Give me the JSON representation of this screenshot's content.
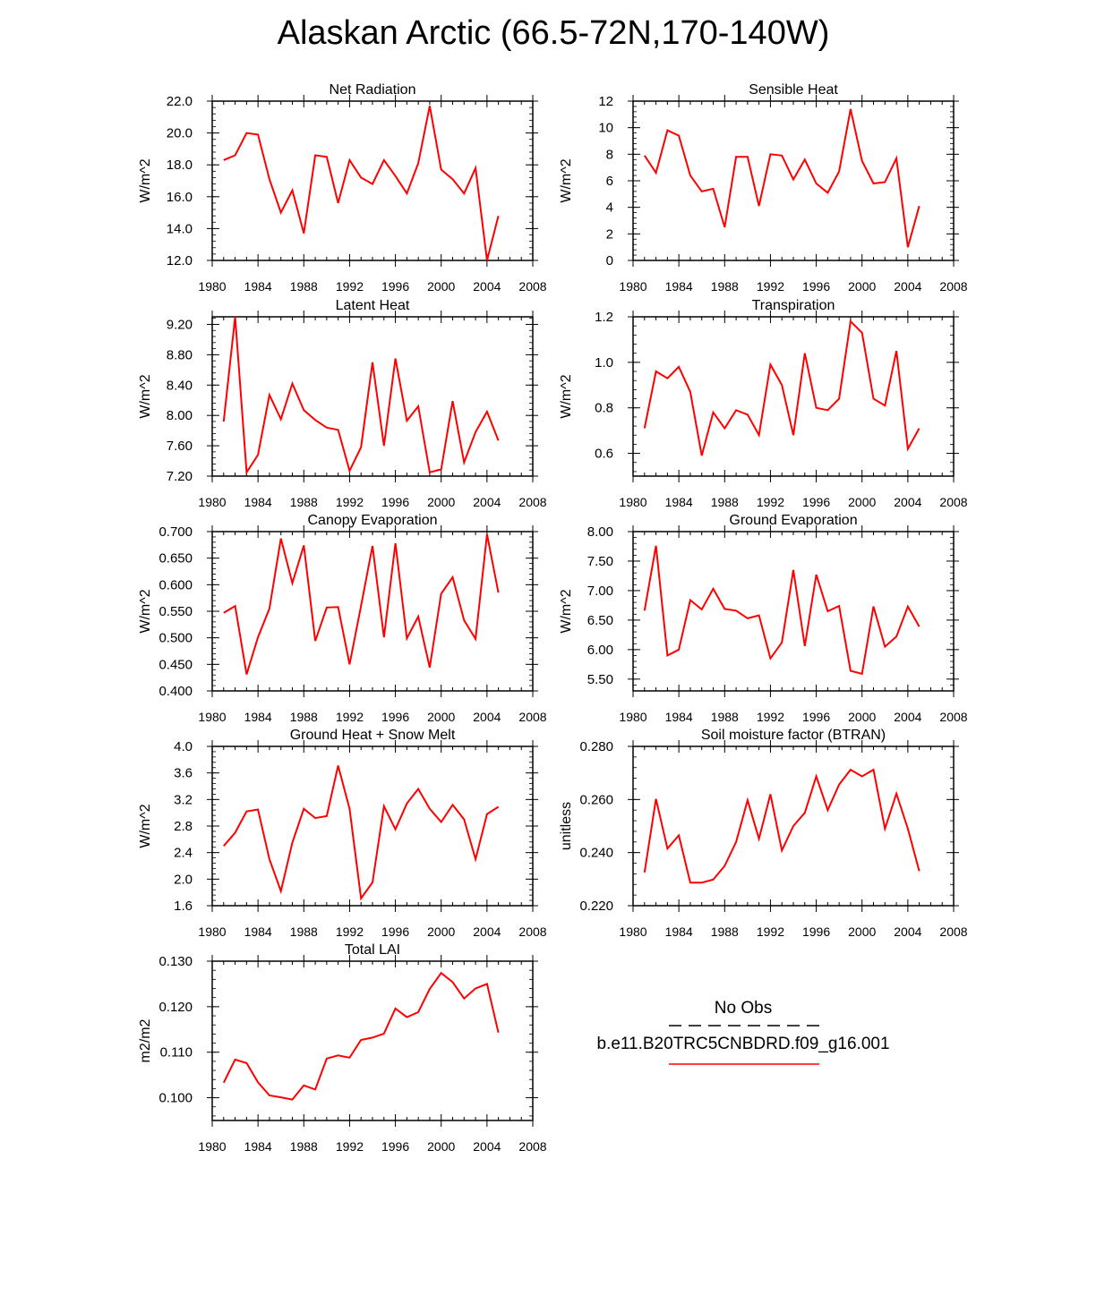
{
  "title": "Alaskan Arctic (66.5-72N,170-140W)",
  "line_color": "#ff0000",
  "chart_data": [
    {
      "type": "line",
      "title": "Net Radiation",
      "ylabel": "W/m^2",
      "xlim": [
        1980,
        2008
      ],
      "ylim": [
        12,
        22
      ],
      "yticks": [
        "12.0",
        "14.0",
        "16.0",
        "18.0",
        "20.0",
        "22.0"
      ],
      "ytick_values": [
        12,
        14,
        16,
        18,
        20,
        22
      ],
      "xticks": [
        "1980",
        "1984",
        "1988",
        "1992",
        "1996",
        "2000",
        "2004",
        "2008"
      ],
      "x": [
        1981,
        1982,
        1983,
        1984,
        1985,
        1986,
        1987,
        1988,
        1989,
        1990,
        1991,
        1992,
        1993,
        1994,
        1995,
        1996,
        1997,
        1998,
        1999,
        2000,
        2001,
        2002,
        2003,
        2004,
        2005
      ],
      "values": [
        18.3,
        18.6,
        20.0,
        19.9,
        17.1,
        15.0,
        16.4,
        13.7,
        18.6,
        18.5,
        15.6,
        18.3,
        17.2,
        16.8,
        18.3,
        17.3,
        16.2,
        18.1,
        21.7,
        17.7,
        17.1,
        16.2,
        17.8,
        12.0,
        14.8
      ]
    },
    {
      "type": "line",
      "title": "Sensible Heat",
      "ylabel": "W/m^2",
      "xlim": [
        1980,
        2008
      ],
      "ylim": [
        0,
        12
      ],
      "yticks": [
        "0",
        "2",
        "4",
        "6",
        "8",
        "10",
        "12"
      ],
      "ytick_values": [
        0,
        2,
        4,
        6,
        8,
        10,
        12
      ],
      "xticks": [
        "1980",
        "1984",
        "1988",
        "1992",
        "1996",
        "2000",
        "2004",
        "2008"
      ],
      "x": [
        1981,
        1982,
        1983,
        1984,
        1985,
        1986,
        1987,
        1988,
        1989,
        1990,
        1991,
        1992,
        1993,
        1994,
        1995,
        1996,
        1997,
        1998,
        1999,
        2000,
        2001,
        2002,
        2003,
        2004,
        2005
      ],
      "values": [
        7.9,
        6.6,
        9.8,
        9.4,
        6.4,
        5.2,
        5.4,
        2.5,
        7.8,
        7.8,
        4.1,
        8.0,
        7.9,
        6.1,
        7.6,
        5.8,
        5.1,
        6.7,
        11.4,
        7.5,
        5.8,
        5.9,
        7.7,
        1.0,
        4.1
      ]
    },
    {
      "type": "line",
      "title": "Latent Heat",
      "ylabel": "W/m^2",
      "xlim": [
        1980,
        2008
      ],
      "ylim": [
        7.2,
        9.3
      ],
      "yticks": [
        "7.20",
        "7.60",
        "8.00",
        "8.40",
        "8.80",
        "9.20"
      ],
      "ytick_values": [
        7.2,
        7.6,
        8.0,
        8.4,
        8.8,
        9.2
      ],
      "xticks": [
        "1980",
        "1984",
        "1988",
        "1992",
        "1996",
        "2000",
        "2004",
        "2008"
      ],
      "x": [
        1981,
        1982,
        1983,
        1984,
        1985,
        1986,
        1987,
        1988,
        1989,
        1990,
        1991,
        1992,
        1993,
        1994,
        1995,
        1996,
        1997,
        1998,
        1999,
        2000,
        2001,
        2002,
        2003,
        2004,
        2005
      ],
      "values": [
        7.92,
        9.3,
        7.25,
        7.48,
        8.27,
        7.95,
        8.42,
        8.07,
        7.94,
        7.84,
        7.81,
        7.27,
        7.58,
        8.7,
        7.6,
        8.75,
        7.93,
        8.12,
        7.25,
        7.29,
        8.19,
        7.38,
        7.78,
        8.05,
        7.67
      ]
    },
    {
      "type": "line",
      "title": "Transpiration",
      "ylabel": "W/m^2",
      "xlim": [
        1980,
        2008
      ],
      "ylim": [
        0.5,
        1.2
      ],
      "yticks": [
        "0.6",
        "0.8",
        "1.0",
        "1.2"
      ],
      "ytick_values": [
        0.6,
        0.8,
        1.0,
        1.2
      ],
      "xticks": [
        "1980",
        "1984",
        "1988",
        "1992",
        "1996",
        "2000",
        "2004",
        "2008"
      ],
      "x": [
        1981,
        1982,
        1983,
        1984,
        1985,
        1986,
        1987,
        1988,
        1989,
        1990,
        1991,
        1992,
        1993,
        1994,
        1995,
        1996,
        1997,
        1998,
        1999,
        2000,
        2001,
        2002,
        2003,
        2004,
        2005
      ],
      "values": [
        0.71,
        0.96,
        0.93,
        0.98,
        0.87,
        0.59,
        0.78,
        0.71,
        0.79,
        0.77,
        0.68,
        0.99,
        0.9,
        0.68,
        1.04,
        0.8,
        0.79,
        0.84,
        1.18,
        1.13,
        0.84,
        0.81,
        1.05,
        0.62,
        0.71
      ]
    },
    {
      "type": "line",
      "title": "Canopy Evaporation",
      "ylabel": "W/m^2",
      "xlim": [
        1980,
        2008
      ],
      "ylim": [
        0.4,
        0.7
      ],
      "yticks": [
        "0.400",
        "0.450",
        "0.500",
        "0.550",
        "0.600",
        "0.650",
        "0.700"
      ],
      "ytick_values": [
        0.4,
        0.45,
        0.5,
        0.55,
        0.6,
        0.65,
        0.7
      ],
      "xticks": [
        "1980",
        "1984",
        "1988",
        "1992",
        "1996",
        "2000",
        "2004",
        "2008"
      ],
      "x": [
        1981,
        1982,
        1983,
        1984,
        1985,
        1986,
        1987,
        1988,
        1989,
        1990,
        1991,
        1992,
        1993,
        1994,
        1995,
        1996,
        1997,
        1998,
        1999,
        2000,
        2001,
        2002,
        2003,
        2004,
        2005
      ],
      "values": [
        0.547,
        0.56,
        0.431,
        0.501,
        0.555,
        0.687,
        0.603,
        0.674,
        0.494,
        0.557,
        0.558,
        0.45,
        0.56,
        0.673,
        0.501,
        0.678,
        0.499,
        0.54,
        0.444,
        0.583,
        0.614,
        0.533,
        0.498,
        0.695,
        0.585
      ]
    },
    {
      "type": "line",
      "title": "Ground Evaporation",
      "ylabel": "W/m^2",
      "xlim": [
        1980,
        2008
      ],
      "ylim": [
        5.3,
        8.0
      ],
      "yticks": [
        "5.50",
        "6.00",
        "6.50",
        "7.00",
        "7.50",
        "8.00"
      ],
      "ytick_values": [
        5.5,
        6.0,
        6.5,
        7.0,
        7.5,
        8.0
      ],
      "xticks": [
        "1980",
        "1984",
        "1988",
        "1992",
        "1996",
        "2000",
        "2004",
        "2008"
      ],
      "x": [
        1981,
        1982,
        1983,
        1984,
        1985,
        1986,
        1987,
        1988,
        1989,
        1990,
        1991,
        1992,
        1993,
        1994,
        1995,
        1996,
        1997,
        1998,
        1999,
        2000,
        2001,
        2002,
        2003,
        2004,
        2005
      ],
      "values": [
        6.66,
        7.76,
        5.9,
        6.0,
        6.84,
        6.68,
        7.03,
        6.69,
        6.66,
        6.53,
        6.58,
        5.85,
        6.12,
        7.35,
        6.06,
        7.27,
        6.65,
        6.74,
        5.64,
        5.59,
        6.73,
        6.05,
        6.22,
        6.73,
        6.39
      ]
    },
    {
      "type": "line",
      "title": "Ground Heat + Snow Melt",
      "ylabel": "W/m^2",
      "xlim": [
        1980,
        2008
      ],
      "ylim": [
        1.6,
        4.0
      ],
      "yticks": [
        "1.6",
        "2.0",
        "2.4",
        "2.8",
        "3.2",
        "3.6",
        "4.0"
      ],
      "ytick_values": [
        1.6,
        2.0,
        2.4,
        2.8,
        3.2,
        3.6,
        4.0
      ],
      "xticks": [
        "1980",
        "1984",
        "1988",
        "1992",
        "1996",
        "2000",
        "2004",
        "2008"
      ],
      "x": [
        1981,
        1982,
        1983,
        1984,
        1985,
        1986,
        1987,
        1988,
        1989,
        1990,
        1991,
        1992,
        1993,
        1994,
        1995,
        1996,
        1997,
        1998,
        1999,
        2000,
        2001,
        2002,
        2003,
        2004,
        2005
      ],
      "values": [
        2.5,
        2.7,
        3.02,
        3.05,
        2.3,
        1.82,
        2.55,
        3.06,
        2.92,
        2.95,
        3.71,
        3.06,
        1.71,
        1.95,
        3.1,
        2.75,
        3.14,
        3.36,
        3.06,
        2.86,
        3.12,
        2.9,
        2.3,
        2.98,
        3.09
      ]
    },
    {
      "type": "line",
      "title": "Soil moisture factor (BTRAN)",
      "ylabel": "unitless",
      "xlim": [
        1980,
        2008
      ],
      "ylim": [
        0.22,
        0.28
      ],
      "yticks": [
        "0.220",
        "0.240",
        "0.260",
        "0.280"
      ],
      "ytick_values": [
        0.22,
        0.24,
        0.26,
        0.28
      ],
      "xticks": [
        "1980",
        "1984",
        "1988",
        "1992",
        "1996",
        "2000",
        "2004",
        "2008"
      ],
      "x": [
        1981,
        1982,
        1983,
        1984,
        1985,
        1986,
        1987,
        1988,
        1989,
        1990,
        1991,
        1992,
        1993,
        1994,
        1995,
        1996,
        1997,
        1998,
        1999,
        2000,
        2001,
        2002,
        2003,
        2004,
        2005
      ],
      "values": [
        0.2325,
        0.2602,
        0.2415,
        0.2465,
        0.2287,
        0.2287,
        0.2298,
        0.235,
        0.244,
        0.2597,
        0.2452,
        0.262,
        0.2408,
        0.25,
        0.255,
        0.2687,
        0.256,
        0.2656,
        0.2712,
        0.2687,
        0.2712,
        0.249,
        0.2622,
        0.249,
        0.233
      ]
    },
    {
      "type": "line",
      "title": "Total LAI",
      "ylabel": "m2/m2",
      "xlim": [
        1980,
        2008
      ],
      "ylim": [
        0.095,
        0.13
      ],
      "yticks": [
        "0.100",
        "0.110",
        "0.120",
        "0.130"
      ],
      "ytick_values": [
        0.1,
        0.11,
        0.12,
        0.13
      ],
      "xticks": [
        "1980",
        "1984",
        "1988",
        "1992",
        "1996",
        "2000",
        "2004",
        "2008"
      ],
      "x": [
        1981,
        1982,
        1983,
        1984,
        1985,
        1986,
        1987,
        1988,
        1989,
        1990,
        1991,
        1992,
        1993,
        1994,
        1995,
        1996,
        1997,
        1998,
        1999,
        2000,
        2001,
        2002,
        2003,
        2004,
        2005
      ],
      "values": [
        0.1033,
        0.1084,
        0.1076,
        0.1034,
        0.1005,
        0.1001,
        0.0996,
        0.1027,
        0.1018,
        0.1086,
        0.1093,
        0.1088,
        0.1127,
        0.1132,
        0.1141,
        0.1196,
        0.1177,
        0.1188,
        0.1239,
        0.1274,
        0.1254,
        0.1218,
        0.124,
        0.125,
        0.1143
      ]
    }
  ],
  "legend": {
    "items": [
      {
        "label": "No Obs",
        "color": "#000000",
        "style": "dashed"
      },
      {
        "label": "b.e11.B20TRC5CNBDRD.f09_g16.001",
        "color": "#ff0000",
        "style": "solid"
      }
    ]
  }
}
